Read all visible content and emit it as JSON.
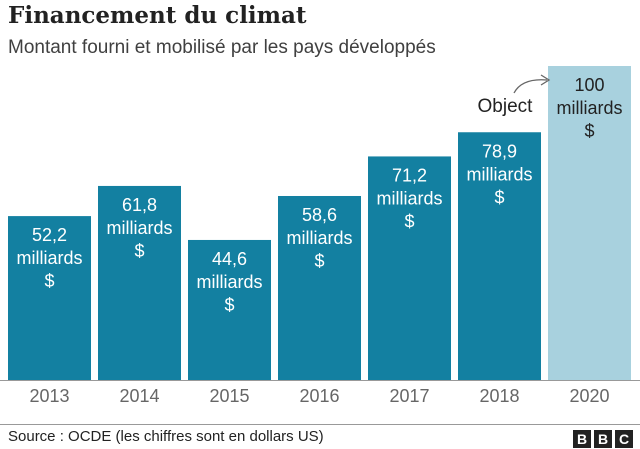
{
  "chart_data": {
    "type": "bar",
    "title": "Financement du climat",
    "subtitle": "Montant fourni et mobilisé par les pays développés",
    "categories": [
      "2013",
      "2014",
      "2015",
      "2016",
      "2017",
      "2018",
      "2020"
    ],
    "values": [
      52.2,
      61.8,
      44.6,
      58.6,
      71.2,
      78.9,
      100
    ],
    "data_labels": [
      [
        "52,2",
        "milliards",
        "$"
      ],
      [
        "61,8",
        "milliards",
        "$"
      ],
      [
        "44,6",
        "milliards",
        "$"
      ],
      [
        "58,6",
        "milliards",
        "$"
      ],
      [
        "71,2",
        "milliards",
        "$"
      ],
      [
        "78,9",
        "milliards",
        "$"
      ],
      [
        "100",
        "milliards",
        "$"
      ]
    ],
    "annotation": {
      "text": "Object",
      "target": "2020"
    },
    "ylim": [
      0,
      100
    ],
    "grid": false,
    "colors": {
      "bar": "#1380A1",
      "target_bar": "#A8D1DE"
    }
  },
  "footer": {
    "source": "Source : OCDE (les chiffres sont en dollars US)",
    "logo": [
      "B",
      "B",
      "C"
    ]
  }
}
